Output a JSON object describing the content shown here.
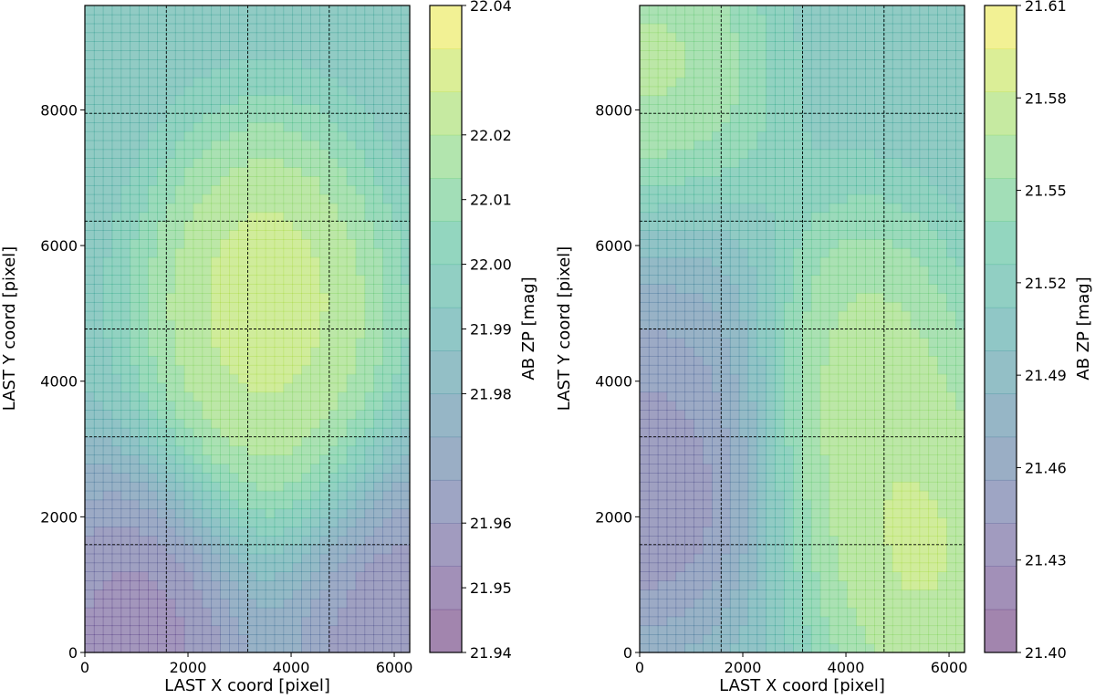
{
  "chart_data": [
    {
      "type": "heatmap",
      "title": "",
      "xlabel": "LAST X coord [pixel]",
      "ylabel": "LAST Y coord [pixel]",
      "xlim": [
        0,
        6300
      ],
      "ylim": [
        0,
        9540
      ],
      "x_ticks": [
        0,
        2000,
        4000,
        6000
      ],
      "y_ticks": [
        0,
        2000,
        4000,
        6000,
        8000
      ],
      "grid": "dashed sub-image boundaries",
      "grid_x": [
        1580,
        3160,
        4740
      ],
      "grid_y": [
        1590,
        3180,
        4770,
        6360,
        7950
      ],
      "colorbar": {
        "label": "AB ZP [mag]",
        "range": [
          21.94,
          22.04
        ],
        "tick_values": [
          21.94,
          21.95,
          21.96,
          21.98,
          21.99,
          22.0,
          22.01,
          22.02,
          22.04
        ],
        "tick_labels": [
          "21.94",
          "21.95",
          "21.96",
          "21.98",
          "21.99",
          "22.00",
          "22.01",
          "22.02",
          "22.04"
        ]
      },
      "colormap": "viridis",
      "alpha": 0.5,
      "levels": 15,
      "hotspots": [
        {
          "x": 3500,
          "y": 5200,
          "value": 22.04
        },
        {
          "x": 3600,
          "y": 4200,
          "value": 22.025
        },
        {
          "x": 1000,
          "y": 100,
          "value": 21.94
        },
        {
          "x": 6100,
          "y": 200,
          "value": 21.945
        }
      ]
    },
    {
      "type": "heatmap",
      "title": "",
      "xlabel": "LAST X coord [pixel]",
      "ylabel": "LAST Y coord [pixel]",
      "xlim": [
        0,
        6300
      ],
      "ylim": [
        0,
        9540
      ],
      "x_ticks": [
        0,
        2000,
        4000,
        6000
      ],
      "y_ticks": [
        0,
        2000,
        4000,
        6000,
        8000
      ],
      "grid": "dashed sub-image boundaries",
      "grid_x": [
        1580,
        3160,
        4740
      ],
      "grid_y": [
        1590,
        3180,
        4770,
        6360,
        7950
      ],
      "colorbar": {
        "label": "AB ZP [mag]",
        "range": [
          21.4,
          21.61
        ],
        "tick_values": [
          21.4,
          21.43,
          21.46,
          21.49,
          21.52,
          21.55,
          21.58,
          21.61
        ],
        "tick_labels": [
          "21.40",
          "21.43",
          "21.46",
          "21.49",
          "21.52",
          "21.55",
          "21.58",
          "21.61"
        ]
      },
      "colormap": "viridis",
      "alpha": 0.5,
      "levels": 15,
      "hotspots": [
        {
          "x": 5500,
          "y": 1400,
          "value": 21.6
        },
        {
          "x": 4300,
          "y": 4000,
          "value": 21.59
        },
        {
          "x": 300,
          "y": 8400,
          "value": 21.585
        },
        {
          "x": 200,
          "y": 2900,
          "value": 21.4
        },
        {
          "x": 500,
          "y": 4600,
          "value": 21.47
        }
      ]
    }
  ]
}
